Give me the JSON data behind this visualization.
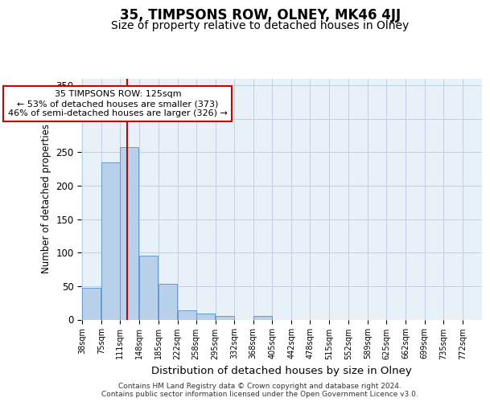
{
  "title": "35, TIMPSONS ROW, OLNEY, MK46 4JJ",
  "subtitle": "Size of property relative to detached houses in Olney",
  "xlabel": "Distribution of detached houses by size in Olney",
  "ylabel": "Number of detached properties",
  "bar_values": [
    47,
    235,
    258,
    95,
    54,
    14,
    9,
    5,
    0,
    5,
    0,
    0,
    0,
    0,
    0,
    0,
    0,
    0,
    0,
    0,
    0
  ],
  "bin_edges": [
    38,
    75,
    111,
    148,
    185,
    222,
    258,
    295,
    332,
    368,
    405,
    442,
    478,
    515,
    552,
    589,
    625,
    662,
    699,
    735,
    772
  ],
  "tick_labels": [
    "38sqm",
    "75sqm",
    "111sqm",
    "148sqm",
    "185sqm",
    "222sqm",
    "258sqm",
    "295sqm",
    "332sqm",
    "368sqm",
    "405sqm",
    "442sqm",
    "478sqm",
    "515sqm",
    "552sqm",
    "589sqm",
    "625sqm",
    "662sqm",
    "699sqm",
    "735sqm",
    "772sqm"
  ],
  "bar_color": "#b8d0ea",
  "bar_edge_color": "#6699cc",
  "grid_color": "#c0d0e0",
  "background_color": "#e8f0f8",
  "red_line_x": 125,
  "red_line_color": "#cc0000",
  "annotation_line1": "35 TIMPSONS ROW: 125sqm",
  "annotation_line2": "← 53% of detached houses are smaller (373)",
  "annotation_line3": "46% of semi-detached houses are larger (326) →",
  "annotation_box_edge": "#cc0000",
  "ylim": [
    0,
    360
  ],
  "yticks": [
    0,
    50,
    100,
    150,
    200,
    250,
    300,
    350
  ],
  "footer_text": "Contains HM Land Registry data © Crown copyright and database right 2024.\nContains public sector information licensed under the Open Government Licence v3.0.",
  "title_fontsize": 12,
  "subtitle_fontsize": 10,
  "xlabel_fontsize": 9.5,
  "ylabel_fontsize": 8.5,
  "tick_fontsize": 7,
  "footer_fontsize": 6.5,
  "annot_fontsize": 8
}
